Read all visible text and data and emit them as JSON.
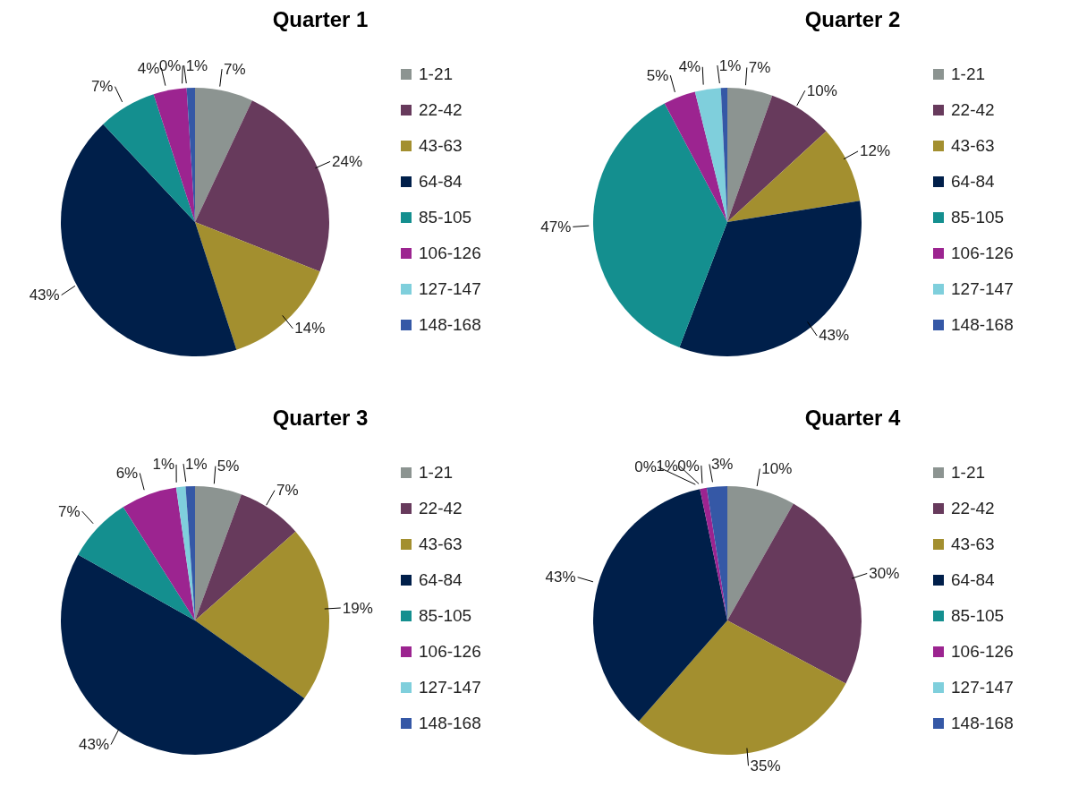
{
  "chart_data": [
    {
      "type": "pie",
      "title": "Quarter 1",
      "categories": [
        "1-21",
        "22-42",
        "43-63",
        "64-84",
        "85-105",
        "106-126",
        "127-147",
        "148-168"
      ],
      "values": [
        7,
        24,
        14,
        43,
        7,
        4,
        0,
        1
      ],
      "value_labels": [
        "7%",
        "24%",
        "14%",
        "43%",
        "7%",
        "4%",
        "0%",
        "1%"
      ],
      "colors": [
        "#8c9491",
        "#673a5c",
        "#a38f2f",
        "#001f4a",
        "#148f8f",
        "#9c2490",
        "#7fcfdc",
        "#3558a6"
      ],
      "legend": "right"
    },
    {
      "type": "pie",
      "title": "Quarter 2",
      "categories": [
        "1-21",
        "22-42",
        "43-63",
        "64-84",
        "85-105",
        "106-126",
        "127-147",
        "148-168"
      ],
      "values": [
        7,
        10,
        12,
        43,
        47,
        5,
        4,
        1
      ],
      "value_labels": [
        "7%",
        "10%",
        "12%",
        "43%",
        "47%",
        "5%",
        "4%",
        "1%"
      ],
      "colors": [
        "#8c9491",
        "#673a5c",
        "#a38f2f",
        "#001f4a",
        "#148f8f",
        "#9c2490",
        "#7fcfdc",
        "#3558a6"
      ],
      "legend": "right"
    },
    {
      "type": "pie",
      "title": "Quarter 3",
      "categories": [
        "1-21",
        "22-42",
        "43-63",
        "64-84",
        "85-105",
        "106-126",
        "127-147",
        "148-168"
      ],
      "values": [
        5,
        7,
        19,
        43,
        7,
        6,
        1,
        1
      ],
      "value_labels": [
        "5%",
        "7%",
        "19%",
        "43%",
        "7%",
        "6%",
        "1%",
        "1%"
      ],
      "colors": [
        "#8c9491",
        "#673a5c",
        "#a38f2f",
        "#001f4a",
        "#148f8f",
        "#9c2490",
        "#7fcfdc",
        "#3558a6"
      ],
      "legend": "right"
    },
    {
      "type": "pie",
      "title": "Quarter 4",
      "categories": [
        "1-21",
        "22-42",
        "43-63",
        "64-84",
        "85-105",
        "106-126",
        "127-147",
        "148-168"
      ],
      "values": [
        10,
        30,
        35,
        43,
        0,
        1,
        0,
        3
      ],
      "value_labels": [
        "10%",
        "30%",
        "35%",
        "43%",
        "0%",
        "1%",
        "0%",
        "3%"
      ],
      "colors": [
        "#8c9491",
        "#673a5c",
        "#a38f2f",
        "#001f4a",
        "#148f8f",
        "#9c2490",
        "#7fcfdc",
        "#3558a6"
      ],
      "legend": "right"
    }
  ]
}
